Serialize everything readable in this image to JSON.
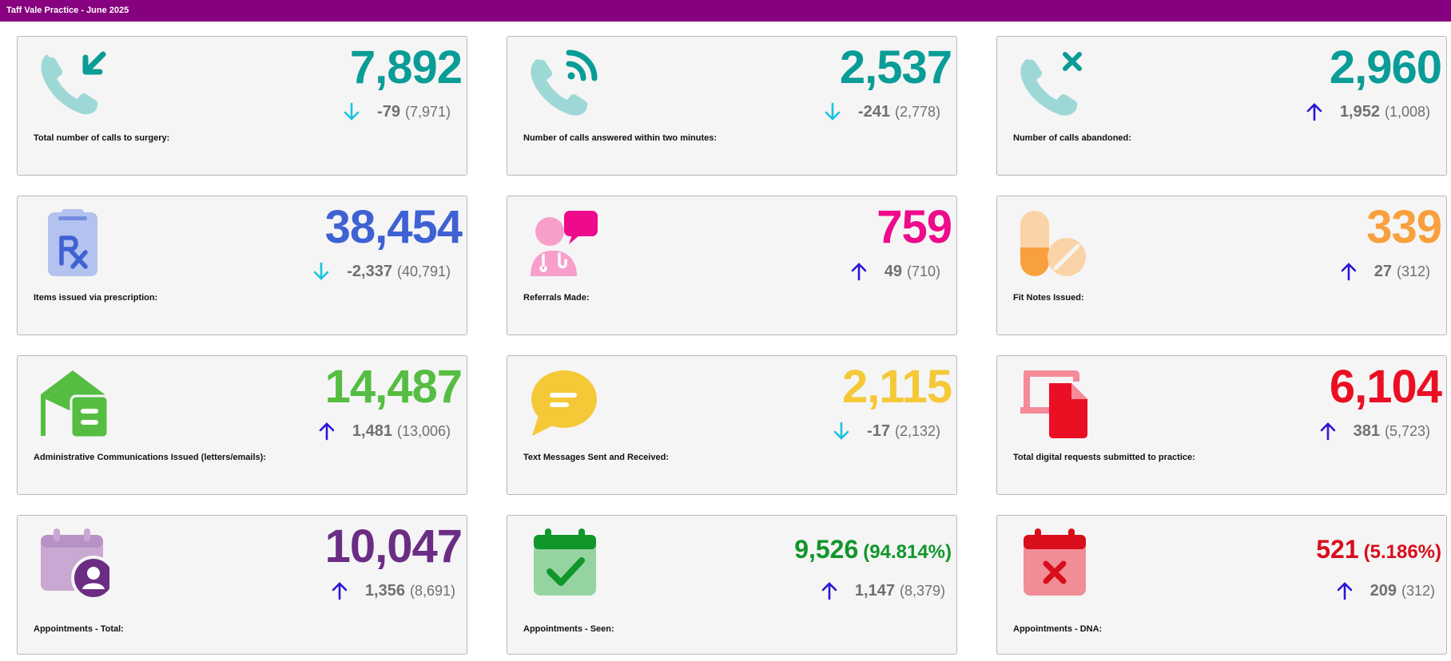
{
  "header": {
    "title": "Taff Vale Practice - June 2025"
  },
  "colors": {
    "header_bg": "#87007f",
    "arrow_down": "#19c4e0",
    "arrow_up": "#2a14d8",
    "teal": "#0a9c96",
    "blue": "#3f62d3",
    "magenta": "#ee0a8b",
    "orange": "#f9a03e",
    "green": "#55bd41",
    "yellow": "#f5c838",
    "red": "#eb0f24",
    "purple": "#6b2d84",
    "dark_green": "#10962a",
    "dna_red": "#d90d1c"
  },
  "cards": [
    {
      "label": "Total number of calls to surgery:",
      "value": "7,892",
      "change": "-79",
      "previous": "(7,971)",
      "direction": "down",
      "icon": "phone-incoming-icon"
    },
    {
      "label": "Number of calls answered within two minutes:",
      "value": "2,537",
      "change": "-241",
      "previous": "(2,778)",
      "direction": "down",
      "icon": "phone-answered-icon"
    },
    {
      "label": "Number of calls abandoned:",
      "value": "2,960",
      "change": "1,952",
      "previous": "(1,008)",
      "direction": "up",
      "icon": "phone-abandoned-icon"
    },
    {
      "label": "Items issued via prescription:",
      "value": "38,454",
      "change": "-2,337",
      "previous": "(40,791)",
      "direction": "down",
      "icon": "prescription-icon"
    },
    {
      "label": "Referrals Made:",
      "value": "759",
      "change": "49",
      "previous": "(710)",
      "direction": "up",
      "icon": "doctor-consult-icon"
    },
    {
      "label": "Fit Notes Issued:",
      "value": "339",
      "change": "27",
      "previous": "(312)",
      "direction": "up",
      "icon": "pills-icon"
    },
    {
      "label": "Administrative Communications Issued (letters/emails):",
      "value": "14,487",
      "change": "1,481",
      "previous": "(13,006)",
      "direction": "up",
      "icon": "envelope-letter-icon"
    },
    {
      "label": "Text Messages Sent and Received:",
      "value": "2,115",
      "change": "-17",
      "previous": "(2,132)",
      "direction": "down",
      "icon": "chat-bubble-icon"
    },
    {
      "label": "Total digital requests submitted to practice:",
      "value": "6,104",
      "change": "381",
      "previous": "(5,723)",
      "direction": "up",
      "icon": "digital-document-icon"
    },
    {
      "label": "Appointments - Total:",
      "value": "10,047",
      "change": "1,356",
      "previous": "(8,691)",
      "direction": "up",
      "icon": "calendar-person-icon"
    },
    {
      "label": "Appointments - Seen:",
      "value": "9,526",
      "percent": "(94.814%)",
      "change": "1,147",
      "previous": "(8,379)",
      "direction": "up",
      "icon": "calendar-check-icon"
    },
    {
      "label": "Appointments - DNA:",
      "value": "521",
      "percent": "(5.186%)",
      "change": "209",
      "previous": "(312)",
      "direction": "up",
      "icon": "calendar-cross-icon"
    }
  ]
}
